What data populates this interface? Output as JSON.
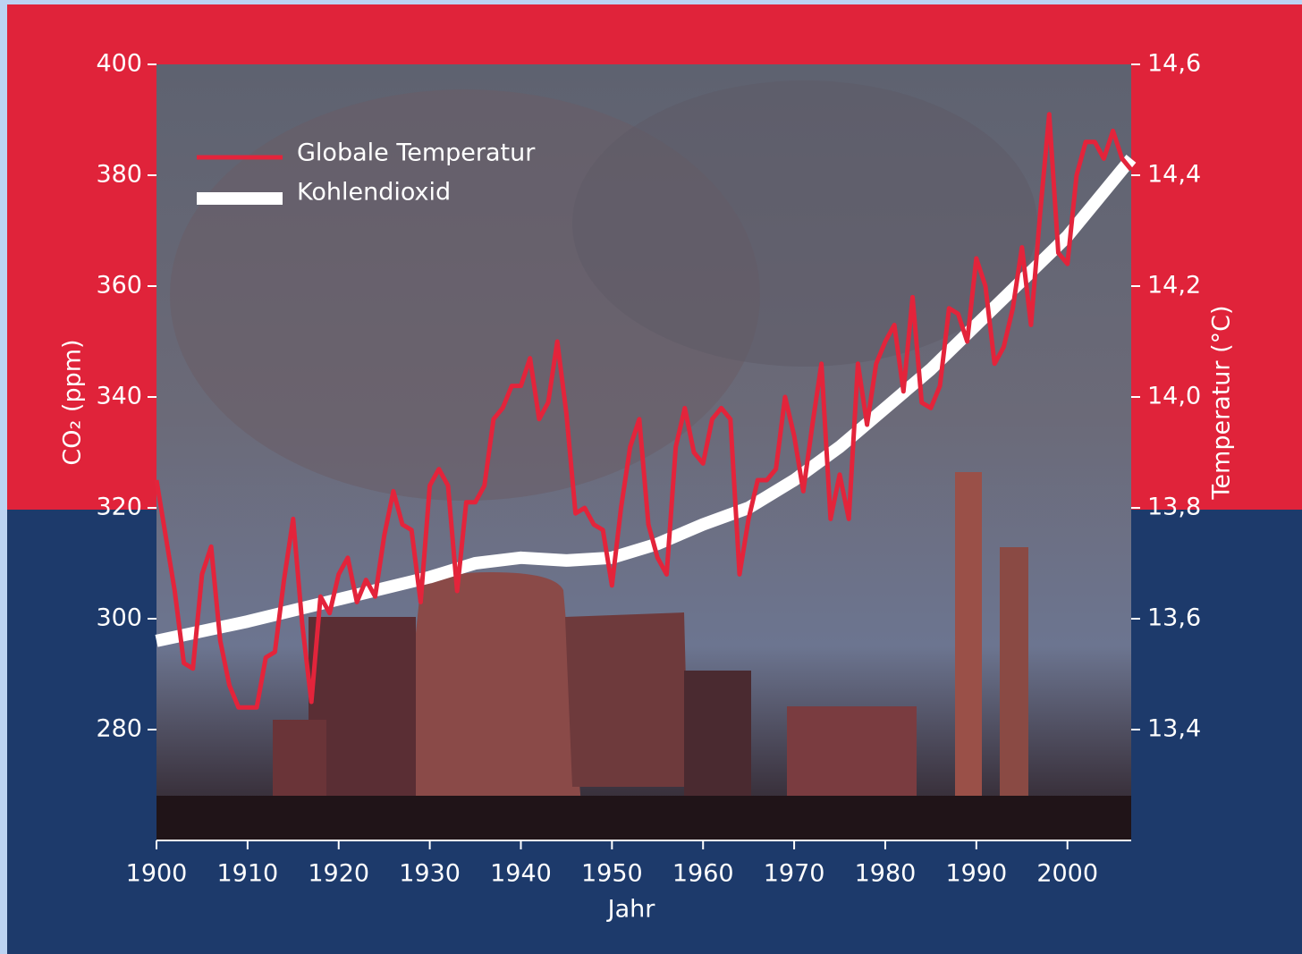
{
  "chart_data": {
    "type": "line",
    "x_label": "Jahr",
    "y_label": "CO₂ (ppm)",
    "y2_label": "Temperatur (°C)",
    "xlim": [
      1900,
      2007
    ],
    "xticks": [
      1900,
      1910,
      1920,
      1930,
      1940,
      1950,
      1960,
      1970,
      1980,
      1990,
      2000
    ],
    "ylim": [
      260,
      400
    ],
    "yticks": [
      280,
      300,
      320,
      340,
      360,
      380,
      400
    ],
    "y2lim": [
      13.2,
      14.6
    ],
    "y2ticks": [
      {
        "value": 13.4,
        "label": "13,4"
      },
      {
        "value": 13.6,
        "label": "13,6"
      },
      {
        "value": 13.8,
        "label": "13,8"
      },
      {
        "value": 14.0,
        "label": "14,0"
      },
      {
        "value": 14.2,
        "label": "14,2"
      },
      {
        "value": 14.4,
        "label": "14,4"
      },
      {
        "value": 14.6,
        "label": "14,6"
      }
    ],
    "legend": "upper left",
    "series": [
      {
        "name": "Globale Temperatur",
        "color": "#e3243b",
        "axis": "y2",
        "x": [
          1900,
          1901,
          1902,
          1903,
          1904,
          1905,
          1906,
          1907,
          1908,
          1909,
          1910,
          1911,
          1912,
          1913,
          1914,
          1915,
          1916,
          1917,
          1918,
          1919,
          1920,
          1921,
          1922,
          1923,
          1924,
          1925,
          1926,
          1927,
          1928,
          1929,
          1930,
          1931,
          1932,
          1933,
          1934,
          1935,
          1936,
          1937,
          1938,
          1939,
          1940,
          1941,
          1942,
          1943,
          1944,
          1945,
          1946,
          1947,
          1948,
          1949,
          1950,
          1951,
          1952,
          1953,
          1954,
          1955,
          1956,
          1957,
          1958,
          1959,
          1960,
          1961,
          1962,
          1963,
          1964,
          1965,
          1966,
          1967,
          1968,
          1969,
          1970,
          1971,
          1972,
          1973,
          1974,
          1975,
          1976,
          1977,
          1978,
          1979,
          1980,
          1981,
          1982,
          1983,
          1984,
          1985,
          1986,
          1987,
          1988,
          1989,
          1990,
          1991,
          1992,
          1993,
          1994,
          1995,
          1996,
          1997,
          1998,
          1999,
          2000,
          2001,
          2002,
          2003,
          2004,
          2005,
          2006,
          2007
        ],
        "values": [
          13.85,
          13.75,
          13.65,
          13.52,
          13.51,
          13.68,
          13.73,
          13.56,
          13.48,
          13.44,
          13.44,
          13.44,
          13.53,
          13.54,
          13.67,
          13.78,
          13.59,
          13.45,
          13.64,
          13.61,
          13.68,
          13.71,
          13.63,
          13.67,
          13.64,
          13.75,
          13.83,
          13.77,
          13.76,
          13.63,
          13.84,
          13.87,
          13.84,
          13.65,
          13.81,
          13.81,
          13.84,
          13.96,
          13.98,
          14.02,
          14.02,
          14.07,
          13.96,
          13.99,
          14.1,
          13.97,
          13.79,
          13.8,
          13.77,
          13.76,
          13.66,
          13.8,
          13.91,
          13.96,
          13.77,
          13.71,
          13.68,
          13.91,
          13.98,
          13.9,
          13.88,
          13.96,
          13.98,
          13.96,
          13.68,
          13.78,
          13.85,
          13.85,
          13.87,
          14.0,
          13.93,
          13.83,
          13.95,
          14.06,
          13.78,
          13.86,
          13.78,
          14.06,
          13.95,
          14.06,
          14.1,
          14.13,
          14.01,
          14.18,
          13.99,
          13.98,
          14.02,
          14.16,
          14.15,
          14.1,
          14.25,
          14.2,
          14.06,
          14.09,
          14.16,
          14.27,
          14.13,
          14.33,
          14.51,
          14.26,
          14.24,
          14.4,
          14.46,
          14.46,
          14.43,
          14.48,
          14.43,
          14.41
        ]
      },
      {
        "name": "Kohlendioxid",
        "color": "#ffffff",
        "axis": "y",
        "x": [
          1900,
          1910,
          1920,
          1930,
          1935,
          1940,
          1945,
          1950,
          1955,
          1960,
          1965,
          1970,
          1975,
          1980,
          1985,
          1990,
          1995,
          2000,
          2005,
          2007
        ],
        "values": [
          296,
          299.5,
          303.5,
          307.5,
          310,
          311,
          310.5,
          311,
          313.5,
          317,
          320,
          325,
          331,
          338,
          345,
          353,
          361,
          369,
          379,
          383
        ]
      }
    ]
  }
}
